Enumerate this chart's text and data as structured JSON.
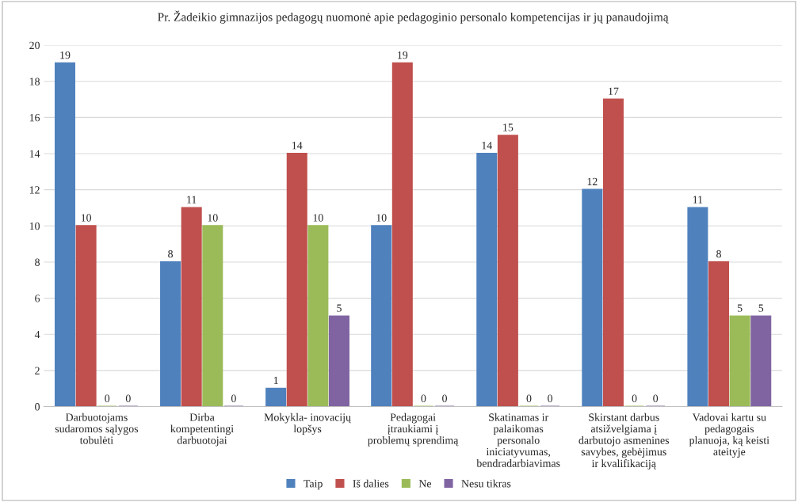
{
  "chart_data": {
    "type": "bar",
    "title": "Pr. Žadeikio gimnazijos pedagogų nuomonė apie pedagoginio personalo kompetencijas ir jų panaudojimą",
    "categories": [
      "Darbuotojams\nsudaromos sąlygos\ntobulėti",
      "Dirba\nkompetentingi\ndarbuotojai",
      "Mokykla- inovacijų\nlopšys",
      "Pedagogai\nįtraukiami į\nproblemų sprendimą",
      "Skatinamas ir\npalaikomas\npersonalo\niniciatyvumas,\nbendradarbiavimas",
      "Skirstant darbus\natsižvelgiama į\ndarbutojo asmenines\nsavybes, gebėjimus\nir kvalifikaciją",
      "Vadovai kartu su\npedagogais\nplanuoja, ką keisti\nateityje"
    ],
    "series": [
      {
        "name": "Taip",
        "color": "#4f81bd",
        "values": [
          19,
          8,
          1,
          10,
          14,
          12,
          11
        ]
      },
      {
        "name": "Iš dalies",
        "color": "#c0504d",
        "values": [
          10,
          11,
          14,
          19,
          15,
          17,
          8
        ]
      },
      {
        "name": "Ne",
        "color": "#9bbb59",
        "values": [
          0,
          10,
          10,
          0,
          0,
          0,
          5
        ]
      },
      {
        "name": "Nesu tikras",
        "color": "#8064a2",
        "values": [
          0,
          0,
          5,
          0,
          0,
          0,
          5
        ]
      }
    ],
    "ylim": [
      0,
      20
    ],
    "yticks": [
      0,
      2,
      4,
      6,
      8,
      10,
      12,
      14,
      16,
      18,
      20
    ],
    "grid": "y",
    "legend": "bottom",
    "data_labels": true
  }
}
